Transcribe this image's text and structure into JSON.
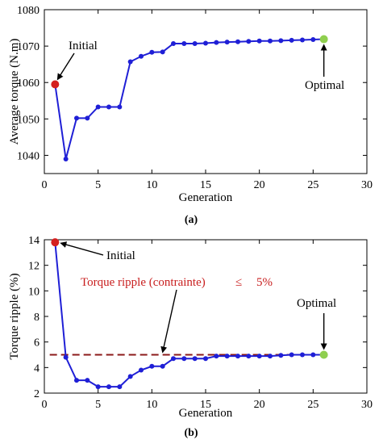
{
  "figure": {
    "caption_a": "(a)",
    "caption_b": "(b)"
  },
  "chart_data": [
    {
      "type": "line",
      "ylabel": "Average torque (N.m)",
      "xlabel": "Generation",
      "xlim": [
        0,
        30
      ],
      "ylim": [
        1035,
        1080
      ],
      "xticks": [
        "0",
        "5",
        "10",
        "15",
        "20",
        "25",
        "30"
      ],
      "yticks": [
        "1040",
        "1050",
        "1060",
        "1070",
        "1080"
      ],
      "grid": false,
      "colors": {
        "line": "#1f1fd6",
        "initial": "#d42020",
        "optimal": "#8fcf4f",
        "arrow": "#000000"
      },
      "series": [
        {
          "x": [
            1,
            2,
            3,
            4,
            5,
            6,
            7,
            8,
            9,
            10,
            11,
            12,
            13,
            14,
            15,
            16,
            17,
            18,
            19,
            20,
            21,
            22,
            23,
            24,
            25,
            26
          ],
          "y": [
            1059.5,
            1039,
            1050.2,
            1050.2,
            1053.3,
            1053.3,
            1053.3,
            1065.7,
            1067.2,
            1068.3,
            1068.4,
            1070.7,
            1070.7,
            1070.7,
            1070.8,
            1071.0,
            1071.1,
            1071.2,
            1071.3,
            1071.4,
            1071.4,
            1071.5,
            1071.6,
            1071.7,
            1071.8,
            1071.9
          ]
        }
      ],
      "annotations": [
        {
          "text": "Initial",
          "x": 1,
          "y": 1059.5
        },
        {
          "text": "Optimal",
          "x": 26,
          "y": 1071.9
        }
      ]
    },
    {
      "type": "line",
      "ylabel": "Torque ripple  (%)",
      "xlabel": "Generation",
      "xlim": [
        0,
        30
      ],
      "ylim": [
        2,
        14
      ],
      "xticks": [
        "0",
        "5",
        "10",
        "15",
        "20",
        "25",
        "30"
      ],
      "yticks": [
        "2",
        "4",
        "6",
        "8",
        "10",
        "12",
        "14"
      ],
      "grid": false,
      "colors": {
        "line": "#1f1fd6",
        "initial": "#d42020",
        "optimal": "#8fcf4f",
        "constraint": "#8b1a1a",
        "constraint_text": "#c81e1e",
        "arrow": "#000000"
      },
      "series": [
        {
          "x": [
            1,
            2,
            3,
            4,
            5,
            6,
            7,
            8,
            9,
            10,
            11,
            12,
            13,
            14,
            15,
            16,
            17,
            18,
            19,
            20,
            21,
            22,
            23,
            24,
            25,
            26
          ],
          "y": [
            13.8,
            4.8,
            3.0,
            3.0,
            2.5,
            2.5,
            2.5,
            3.3,
            3.8,
            4.1,
            4.1,
            4.7,
            4.7,
            4.7,
            4.7,
            4.9,
            4.9,
            4.9,
            4.9,
            4.9,
            4.9,
            4.95,
            5.0,
            5.0,
            5.0,
            5.0
          ]
        }
      ],
      "constraint": {
        "y": 5,
        "x": [
          0.5,
          26
        ]
      },
      "constraint_label": {
        "prefix": "Torque ripple (contrainte)",
        "symbol": "≤",
        "value": "5%"
      },
      "annotations": [
        {
          "text": "Initial",
          "x": 1,
          "y": 13.8
        },
        {
          "text": "Optimal",
          "x": 26,
          "y": 5.0
        }
      ]
    }
  ]
}
